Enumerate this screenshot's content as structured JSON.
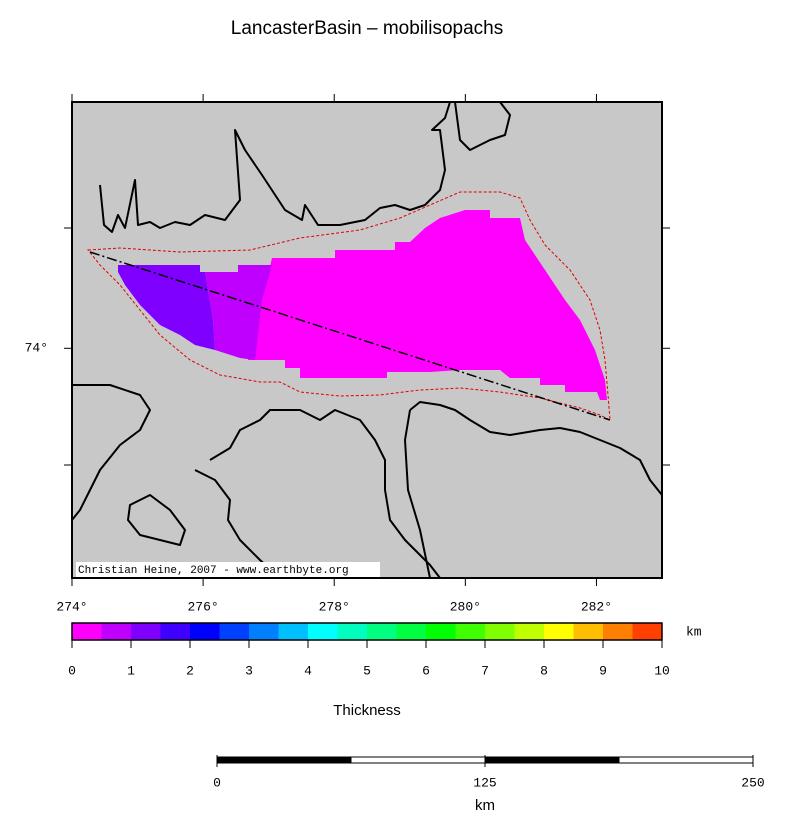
{
  "map": {
    "title": "LancasterBasin – mobilisopachs",
    "xlim": [
      274,
      283
    ],
    "ylim": [
      73.03,
      75.04
    ],
    "xticks": [
      {
        "value": 274,
        "label": "274°"
      },
      {
        "value": 276,
        "label": "276°"
      },
      {
        "value": 278,
        "label": "278°"
      },
      {
        "value": 280,
        "label": "280°"
      },
      {
        "value": 282,
        "label": "282°"
      }
    ],
    "yticks": [
      {
        "value": 74,
        "label": "74°"
      }
    ],
    "credit": "Christian Heine, 2007 - www.earthbyte.org"
  },
  "colorbar": {
    "unit": "km",
    "label": "Thickness",
    "lim": [
      0,
      10
    ],
    "ticks": [
      0,
      1,
      2,
      3,
      4,
      5,
      6,
      7,
      8,
      9,
      10
    ],
    "colors": [
      "#ff00ff",
      "#bf00ff",
      "#8000ff",
      "#4000ff",
      "#0000ff",
      "#0040ff",
      "#0080ff",
      "#00bfff",
      "#00ffff",
      "#00ffbf",
      "#00ff80",
      "#00ff40",
      "#00ff00",
      "#40ff00",
      "#80ff00",
      "#bfff00",
      "#ffff00",
      "#ffbf00",
      "#ff8000",
      "#ff4000"
    ]
  },
  "scalebar": {
    "unit": "km",
    "lim": [
      0,
      250
    ],
    "ticks": [
      0,
      125,
      250
    ]
  }
}
